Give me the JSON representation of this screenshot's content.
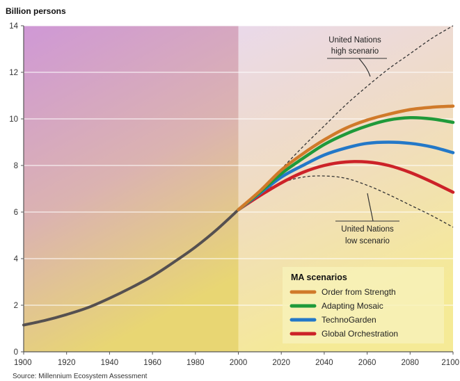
{
  "chart_data": {
    "type": "line",
    "ylabel": "Billion persons",
    "source": "Source: Millennium Ecosystem Assessment",
    "xlim": [
      1900,
      2100
    ],
    "ylim": [
      0,
      14
    ],
    "x_ticks": [
      1900,
      1920,
      1940,
      1960,
      1980,
      2000,
      2020,
      2040,
      2060,
      2080,
      2100
    ],
    "y_ticks": [
      0,
      2,
      4,
      6,
      8,
      10,
      12,
      14
    ],
    "x_tick_labels": [
      "1900",
      "1920",
      "1940",
      "1960",
      "1980",
      "2000",
      "2020",
      "2040",
      "2060",
      "2080",
      "2100"
    ],
    "y_tick_labels": [
      "0",
      "2",
      "4",
      "6",
      "8",
      "10",
      "12",
      "14"
    ],
    "grid": "horizontal",
    "legend": {
      "title": "MA scenarios",
      "position": "bottom-right"
    },
    "colors": {
      "historical_bg_top": "#cf98d6",
      "historical_bg_bottom": "#e8d673",
      "projection_bg_top": "#ead9ea",
      "projection_bg_bottom": "#f5ea96",
      "historical_line": "#555050"
    },
    "historical": {
      "x": [
        1900,
        1910,
        1920,
        1930,
        1940,
        1950,
        1960,
        1970,
        1980,
        1990,
        2000
      ],
      "y": [
        1.15,
        1.35,
        1.6,
        1.9,
        2.3,
        2.75,
        3.25,
        3.85,
        4.5,
        5.25,
        6.1
      ]
    },
    "series": [
      {
        "name": "Order from Strength",
        "color": "#d07a2a",
        "x": [
          2000,
          2010,
          2020,
          2030,
          2040,
          2050,
          2060,
          2070,
          2080,
          2090,
          2100
        ],
        "y": [
          6.1,
          6.9,
          7.8,
          8.5,
          9.1,
          9.6,
          9.95,
          10.2,
          10.4,
          10.5,
          10.55
        ]
      },
      {
        "name": "Adapting Mosaic",
        "color": "#1f9a3a",
        "x": [
          2000,
          2010,
          2020,
          2030,
          2040,
          2050,
          2060,
          2070,
          2080,
          2090,
          2100
        ],
        "y": [
          6.1,
          6.85,
          7.65,
          8.3,
          8.9,
          9.35,
          9.7,
          9.95,
          10.05,
          10.0,
          9.85
        ]
      },
      {
        "name": "TechnoGarden",
        "color": "#2378c8",
        "x": [
          2000,
          2010,
          2020,
          2030,
          2040,
          2050,
          2060,
          2070,
          2080,
          2090,
          2100
        ],
        "y": [
          6.1,
          6.8,
          7.5,
          8.0,
          8.45,
          8.75,
          8.95,
          9.0,
          8.95,
          8.8,
          8.55
        ]
      },
      {
        "name": "Global Orchestration",
        "color": "#cc2228",
        "x": [
          2000,
          2010,
          2020,
          2030,
          2040,
          2050,
          2060,
          2070,
          2080,
          2090,
          2100
        ],
        "y": [
          6.1,
          6.7,
          7.25,
          7.7,
          8.0,
          8.15,
          8.15,
          8.0,
          7.7,
          7.3,
          6.85
        ]
      }
    ],
    "un_scenarios": [
      {
        "name": "United Nations high scenario",
        "label_lines": [
          "United Nations",
          "high scenario"
        ],
        "color": "#333333",
        "x": [
          2000,
          2010,
          2020,
          2030,
          2040,
          2050,
          2060,
          2070,
          2080,
          2090,
          2100
        ],
        "y": [
          6.1,
          6.95,
          7.85,
          8.8,
          9.7,
          10.6,
          11.4,
          12.15,
          12.8,
          13.45,
          14.0
        ]
      },
      {
        "name": "United Nations low scenario",
        "label_lines": [
          "United Nations",
          "low scenario"
        ],
        "color": "#333333",
        "x": [
          2000,
          2010,
          2020,
          2030,
          2040,
          2050,
          2060,
          2070,
          2080,
          2090,
          2100
        ],
        "y": [
          6.1,
          6.8,
          7.25,
          7.5,
          7.55,
          7.45,
          7.15,
          6.75,
          6.3,
          5.85,
          5.35
        ]
      }
    ]
  }
}
